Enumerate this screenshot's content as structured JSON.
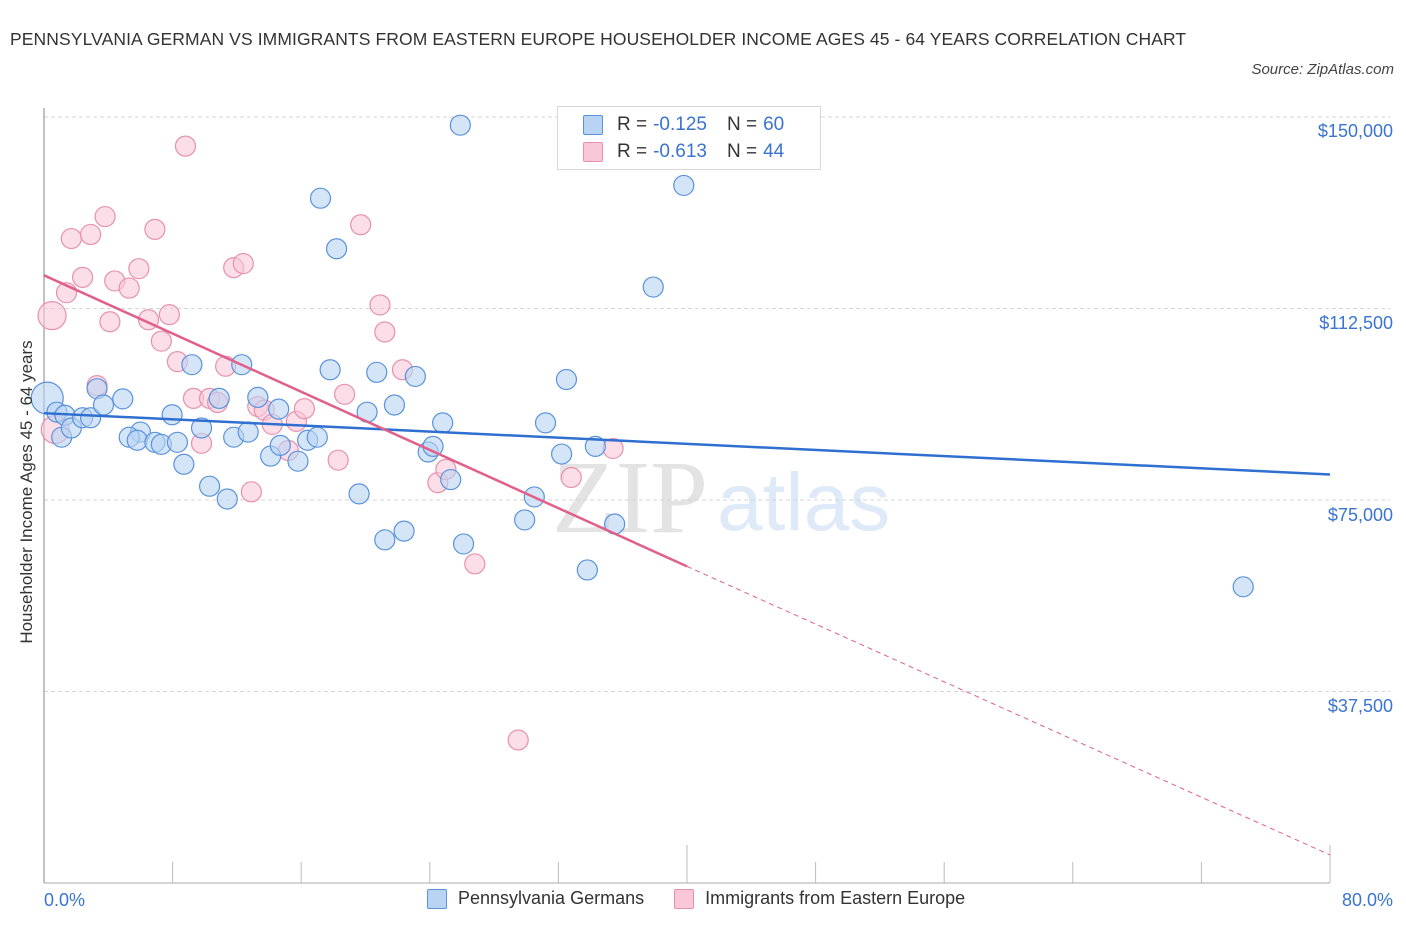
{
  "title": "PENNSYLVANIA GERMAN VS IMMIGRANTS FROM EASTERN EUROPE HOUSEHOLDER INCOME AGES 45 - 64 YEARS CORRELATION CHART",
  "source": "Source: ZipAtlas.com",
  "watermark": {
    "zip": "ZIP",
    "atlas": "atlas"
  },
  "colors": {
    "blue_fill": "#b9d3f3",
    "blue_stroke": "#5a92dc",
    "blue_line": "#2f6fd0",
    "pink_fill": "#f8c8d8",
    "pink_stroke": "#e890ad",
    "pink_line": "#e0608a",
    "axis_text": "#3a74d0",
    "grid": "#d6d6d6"
  },
  "legend": {
    "series1": {
      "r_label": "R =",
      "r_value": "-0.125",
      "n_label": "N =",
      "n_value": "60"
    },
    "series2": {
      "r_label": "R =",
      "r_value": "-0.613",
      "n_label": "N =",
      "n_value": "44"
    }
  },
  "bottom_legend": {
    "series1": "Pennsylvania Germans",
    "series2": "Immigrants from Eastern Europe"
  },
  "axes": {
    "y_label": "Householder Income Ages 45 - 64 years",
    "y_ticks": [
      "$150,000",
      "$112,500",
      "$75,000",
      "$37,500"
    ],
    "x_min_label": "0.0%",
    "x_max_label": "80.0%"
  },
  "chart_data": {
    "type": "scatter",
    "title": "PENNSYLVANIA GERMAN VS IMMIGRANTS FROM EASTERN EUROPE HOUSEHOLDER INCOME AGES 45 - 64 YEARS CORRELATION CHART",
    "xlabel": "",
    "ylabel": "Householder Income Ages 45 - 64 years",
    "xlim": [
      0,
      80
    ],
    "ylim": [
      0,
      150000
    ],
    "x_unit": "%",
    "y_ticks": [
      37500,
      75000,
      112500,
      150000
    ],
    "x_tick_labels": [
      "0.0%",
      "80.0%"
    ],
    "grid": "horizontal dashed",
    "legend_position": "top-center",
    "series": [
      {
        "name": "Pennsylvania Germans",
        "R": -0.125,
        "N": 60,
        "trend": {
          "x": [
            0,
            80
          ],
          "y": [
            92000,
            80000
          ]
        },
        "points": [
          [
            0.2,
            94950
          ],
          [
            0.8,
            92200
          ],
          [
            1.1,
            87300
          ],
          [
            1.3,
            91600
          ],
          [
            1.7,
            89100
          ],
          [
            2.4,
            91100
          ],
          [
            2.9,
            91100
          ],
          [
            3.3,
            96800
          ],
          [
            3.7,
            93600
          ],
          [
            4.9,
            94800
          ],
          [
            6.0,
            88300
          ],
          [
            5.3,
            87300
          ],
          [
            5.8,
            86700
          ],
          [
            6.9,
            86300
          ],
          [
            7.3,
            85900
          ],
          [
            7.97,
            91700
          ],
          [
            8.3,
            86300
          ],
          [
            8.7,
            82000
          ],
          [
            9.2,
            101500
          ],
          [
            9.8,
            89100
          ],
          [
            10.3,
            77700
          ],
          [
            10.9,
            94900
          ],
          [
            11.4,
            75200
          ],
          [
            11.8,
            87300
          ],
          [
            12.3,
            101500
          ],
          [
            12.7,
            88300
          ],
          [
            13.3,
            95100
          ],
          [
            14.1,
            83600
          ],
          [
            14.6,
            92800
          ],
          [
            14.7,
            85700
          ],
          [
            15.8,
            82600
          ],
          [
            16.4,
            86700
          ],
          [
            17.0,
            87300
          ],
          [
            17.2,
            134100
          ],
          [
            17.8,
            100500
          ],
          [
            18.2,
            124200
          ],
          [
            19.6,
            76200
          ],
          [
            20.1,
            92200
          ],
          [
            20.7,
            100000
          ],
          [
            21.2,
            67200
          ],
          [
            21.8,
            93600
          ],
          [
            22.4,
            68900
          ],
          [
            23.1,
            99200
          ],
          [
            23.9,
            84400
          ],
          [
            24.2,
            85500
          ],
          [
            24.8,
            90100
          ],
          [
            25.3,
            79000
          ],
          [
            25.9,
            148400
          ],
          [
            26.1,
            66400
          ],
          [
            29.9,
            71100
          ],
          [
            30.5,
            75600
          ],
          [
            31.2,
            90100
          ],
          [
            32.2,
            84000
          ],
          [
            32.5,
            98600
          ],
          [
            33.8,
            61300
          ],
          [
            34.3,
            85500
          ],
          [
            35.5,
            70300
          ],
          [
            37.9,
            116700
          ],
          [
            39.8,
            136600
          ],
          [
            74.6,
            58000
          ]
        ]
      },
      {
        "name": "Immigrants from Eastern Europe",
        "R": -0.613,
        "N": 44,
        "trend": {
          "x": [
            0,
            40
          ],
          "y": [
            119000,
            62000
          ],
          "dashed_extension": {
            "x": [
              40,
              80
            ],
            "y": [
              62000,
              5500
            ]
          }
        },
        "points": [
          [
            0.5,
            111100
          ],
          [
            0.7,
            88800
          ],
          [
            1.4,
            115600
          ],
          [
            1.7,
            126200
          ],
          [
            2.4,
            118600
          ],
          [
            2.9,
            127000
          ],
          [
            3.3,
            97400
          ],
          [
            3.8,
            130500
          ],
          [
            4.1,
            109900
          ],
          [
            4.4,
            117900
          ],
          [
            5.3,
            116500
          ],
          [
            5.9,
            120300
          ],
          [
            6.5,
            110300
          ],
          [
            6.9,
            128000
          ],
          [
            7.3,
            106100
          ],
          [
            7.8,
            111300
          ],
          [
            8.3,
            102100
          ],
          [
            8.8,
            144300
          ],
          [
            9.3,
            94900
          ],
          [
            9.8,
            86100
          ],
          [
            10.3,
            94900
          ],
          [
            10.8,
            94100
          ],
          [
            11.3,
            101200
          ],
          [
            11.8,
            120500
          ],
          [
            12.4,
            121300
          ],
          [
            12.9,
            76600
          ],
          [
            13.3,
            93300
          ],
          [
            13.7,
            92600
          ],
          [
            14.2,
            89800
          ],
          [
            15.2,
            84700
          ],
          [
            15.7,
            90400
          ],
          [
            16.2,
            92900
          ],
          [
            18.3,
            82800
          ],
          [
            18.7,
            95700
          ],
          [
            19.7,
            128900
          ],
          [
            20.9,
            113200
          ],
          [
            21.2,
            107900
          ],
          [
            22.3,
            100500
          ],
          [
            24.5,
            78400
          ],
          [
            25.0,
            81000
          ],
          [
            26.8,
            62500
          ],
          [
            29.5,
            28000
          ],
          [
            32.8,
            79400
          ],
          [
            35.4,
            85100
          ]
        ]
      }
    ]
  }
}
